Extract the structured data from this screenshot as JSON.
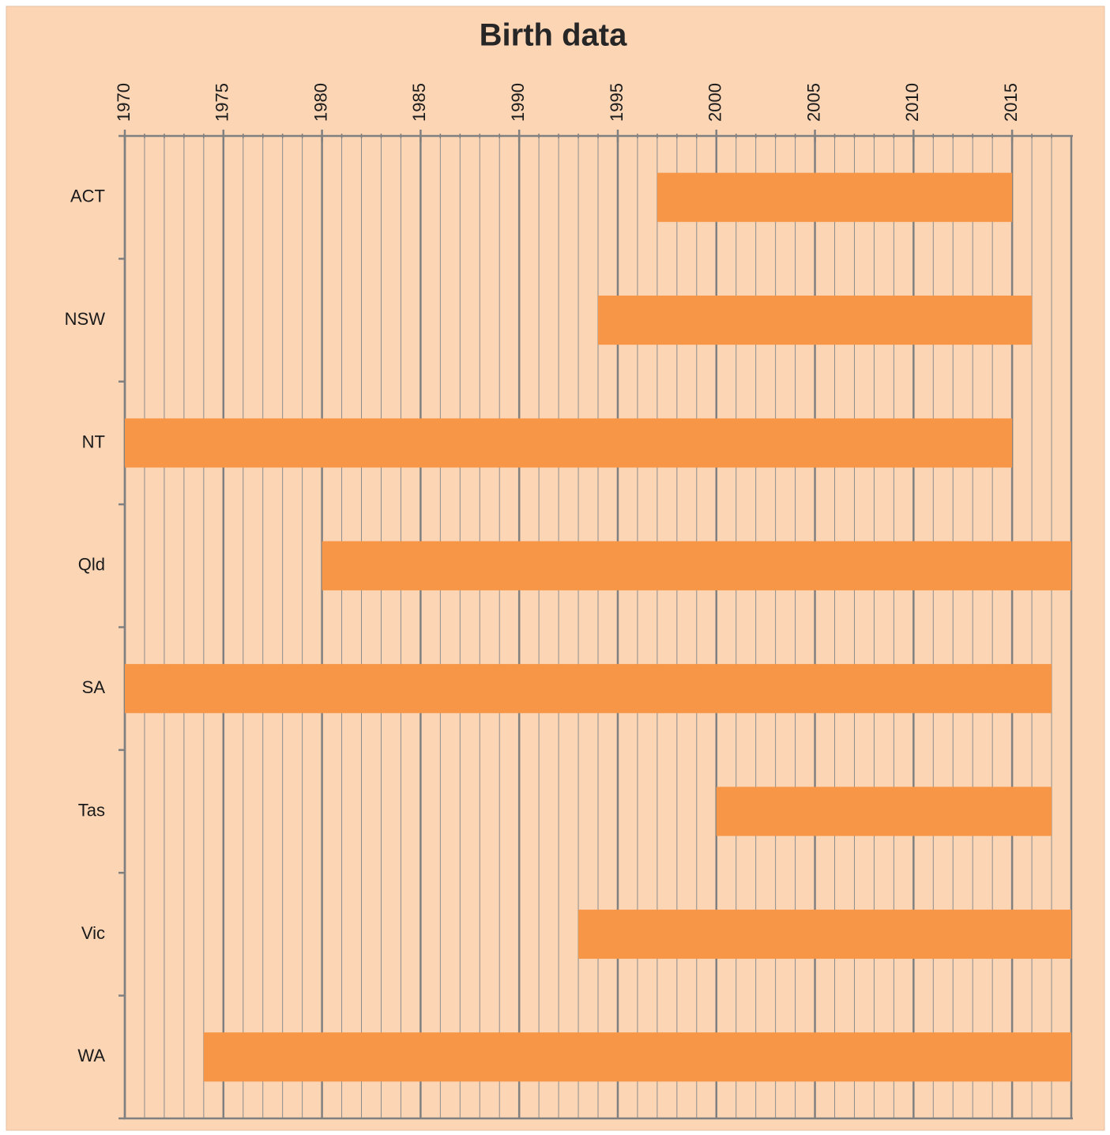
{
  "chart_data": {
    "type": "floating-bar",
    "title": "Birth data",
    "categories": [
      "ACT",
      "NSW",
      "NT",
      "Qld",
      "SA",
      "Tas",
      "Vic",
      "WA"
    ],
    "starts": [
      1997,
      1994,
      1970,
      1980,
      1970,
      2000,
      1993,
      1974
    ],
    "ends": [
      2015,
      2016,
      2015,
      2018,
      2017,
      2017,
      2018,
      2018
    ],
    "color": "#f79646",
    "xlim": [
      1970,
      2018
    ],
    "xticks": [
      1970,
      1975,
      1980,
      1985,
      1990,
      1995,
      2000,
      2005,
      2010,
      2015
    ],
    "xminorticks": [
      1971,
      1972,
      1973,
      1974,
      1976,
      1977,
      1978,
      1979,
      1981,
      1982,
      1983,
      1984,
      1986,
      1987,
      1988,
      1989,
      1991,
      1992,
      1993,
      1994,
      1996,
      1997,
      1998,
      1999,
      2001,
      2002,
      2003,
      2004,
      2006,
      2007,
      2008,
      2009,
      2011,
      2012,
      2013,
      2014,
      2016,
      2017
    ],
    "xaxis_position": "top",
    "grid": true
  }
}
